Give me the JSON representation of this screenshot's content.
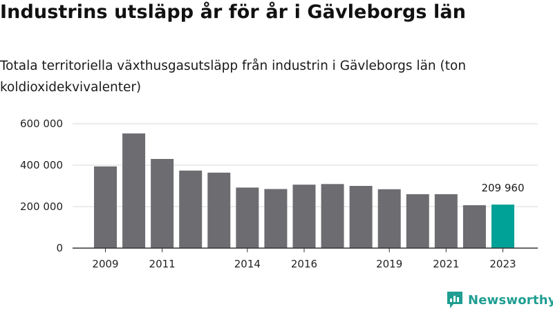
{
  "title": "Industrins utsläpp år för år i Gävleborgs län",
  "subtitle": "Totala territoriella växthusgasutsläpp från industrin i Gävleborgs län (ton koldioxidekvivalenter)",
  "brand": {
    "name": "Newsworthy",
    "icon": "newsworthy-logo-icon",
    "color": "#1f9e92"
  },
  "colors": {
    "bar": "#6d6c70",
    "highlight": "#00a196",
    "grid": "#d9d9d9",
    "axis": "#333333"
  },
  "chart_data": {
    "type": "bar",
    "categories": [
      "2009",
      "2010",
      "2011",
      "2012",
      "2013",
      "2014",
      "2015",
      "2016",
      "2017",
      "2018",
      "2019",
      "2020",
      "2021",
      "2022",
      "2023"
    ],
    "values": [
      394000,
      553000,
      430000,
      374000,
      364000,
      292000,
      285000,
      306000,
      309000,
      300000,
      284000,
      260000,
      260000,
      207000,
      209960
    ],
    "x_tick_labels": [
      "2009",
      "",
      "2011",
      "",
      "",
      "2014",
      "",
      "2016",
      "",
      "",
      "2019",
      "",
      "2021",
      "",
      "2023"
    ],
    "y_ticks": [
      0,
      200000,
      400000,
      600000
    ],
    "y_tick_labels": [
      "0",
      "200 000",
      "400 000",
      "600 000"
    ],
    "ylim": [
      0,
      600000
    ],
    "grid": true,
    "highlight_index": 14,
    "annotation": {
      "index": 14,
      "text": "209 960"
    },
    "xlabel": "",
    "ylabel": ""
  }
}
